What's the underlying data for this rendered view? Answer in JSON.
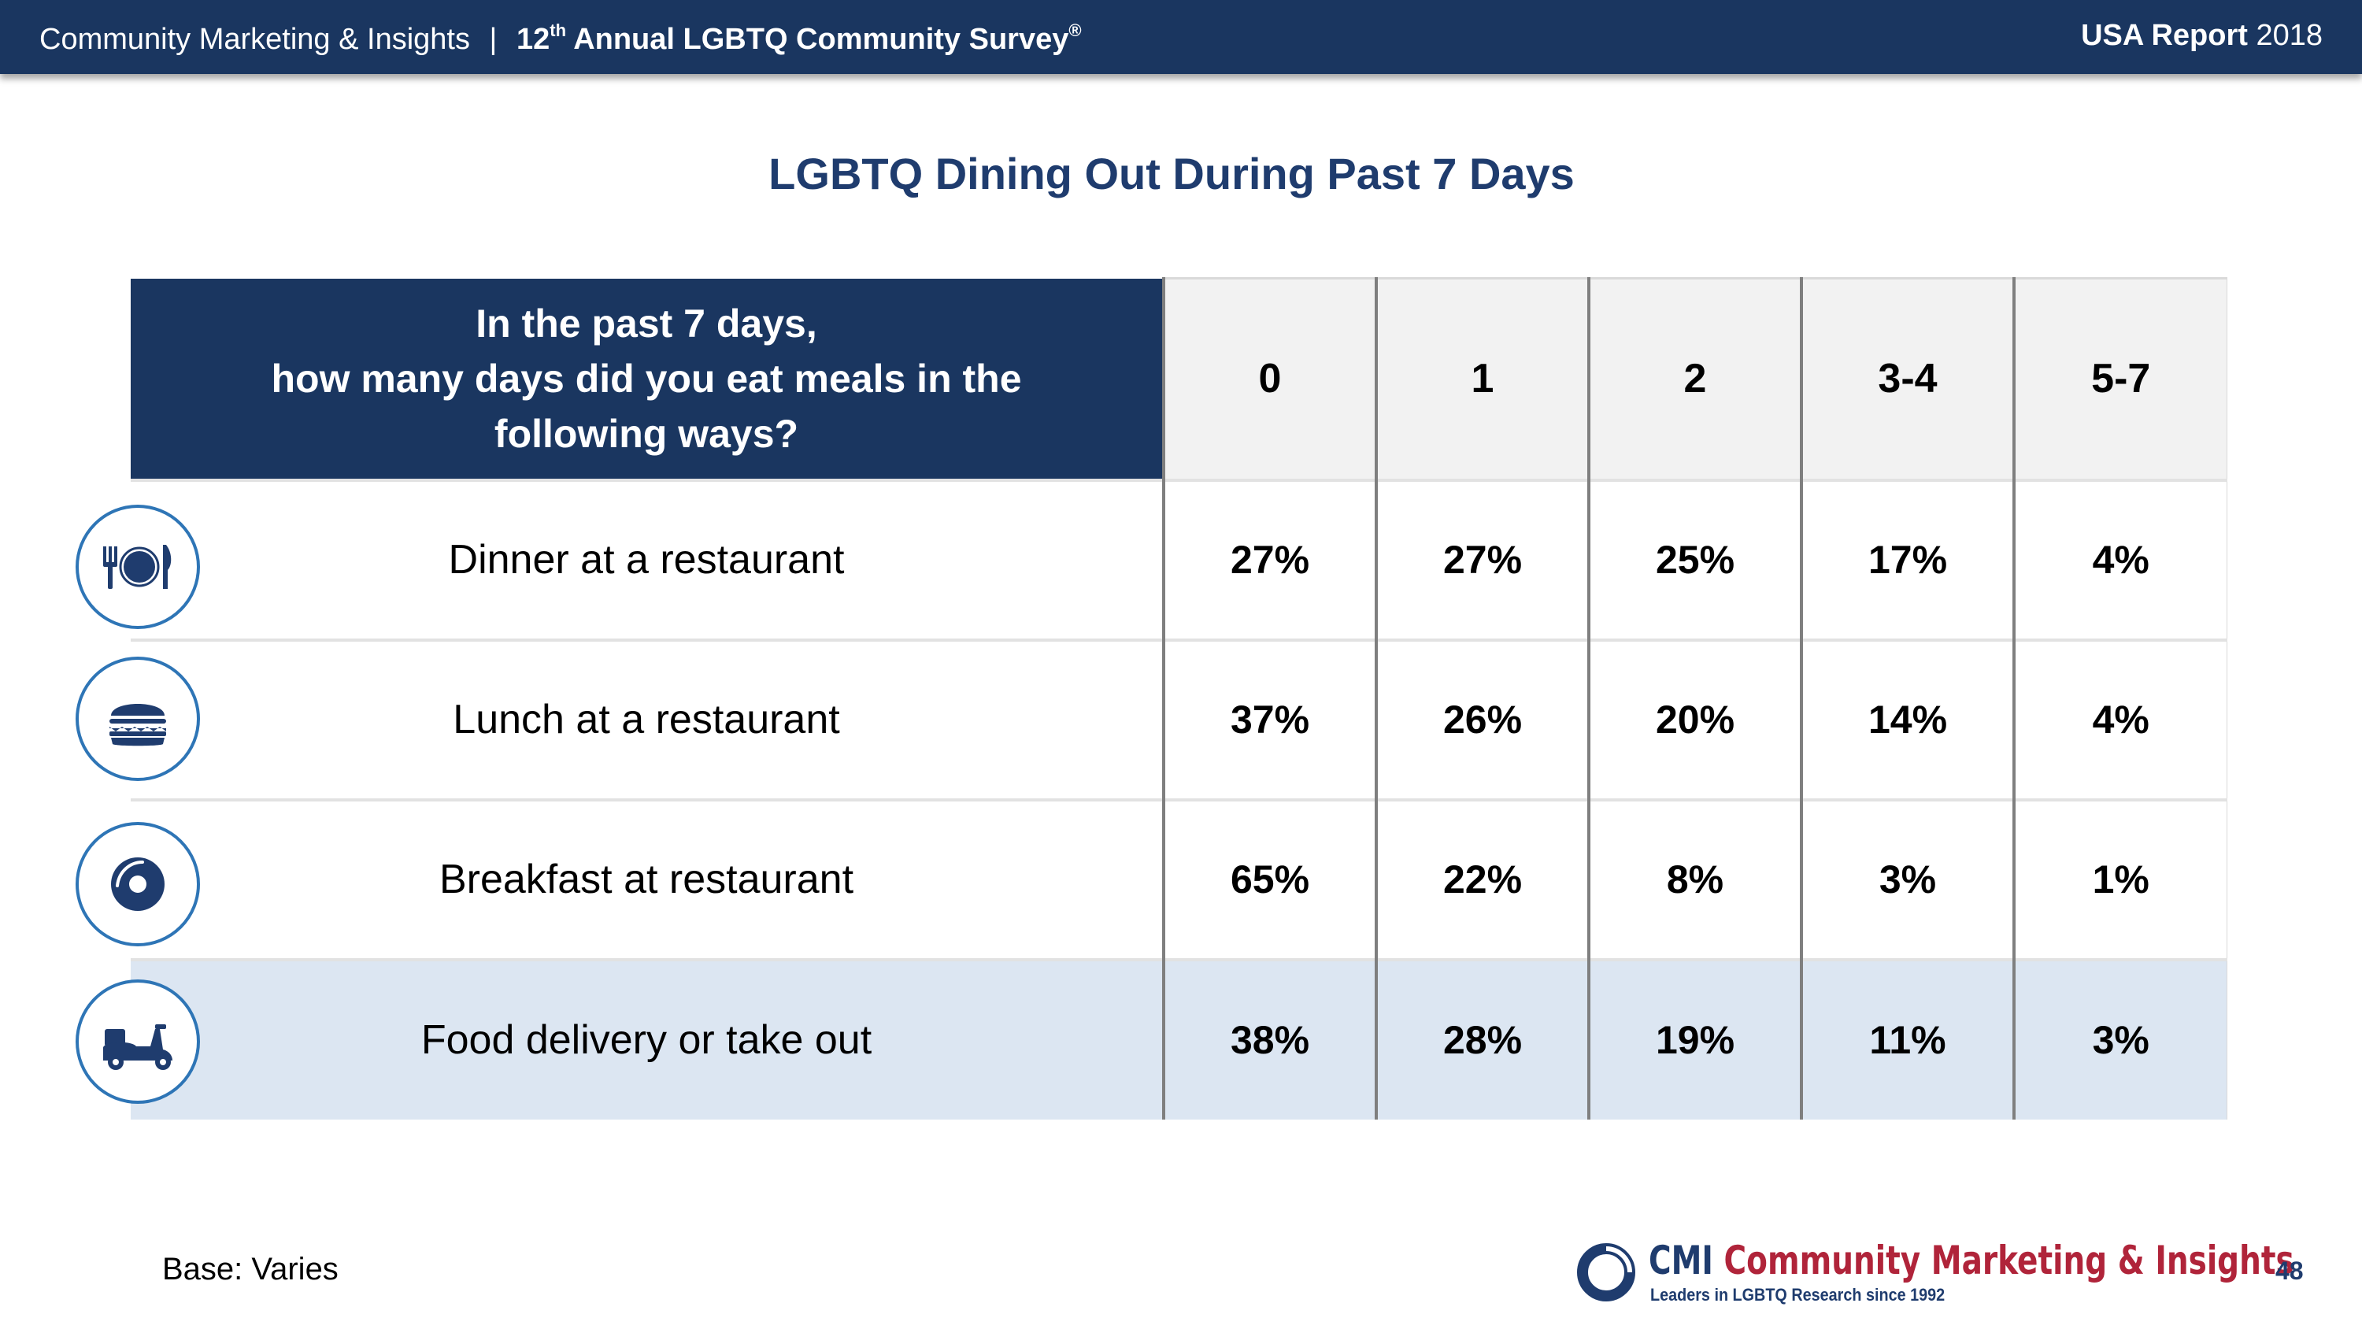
{
  "header": {
    "org": "Community Marketing & Insights",
    "separator": "|",
    "survey_prefix": "12",
    "survey_sup": "th",
    "survey_name": "Annual LGBTQ Community Survey",
    "survey_mark": "®",
    "report_label": "USA Report",
    "report_year": "2018"
  },
  "title": "LGBTQ Dining Out During Past 7 Days",
  "table": {
    "question_lines": [
      "In the past 7 days,",
      "how many days did you eat meals in the",
      "following ways?"
    ],
    "columns": [
      "0",
      "1",
      "2",
      "3-4",
      "5-7"
    ],
    "rows": [
      {
        "label": "Dinner at a restaurant",
        "icon": "dinner-plate-icon",
        "values": [
          "27%",
          "27%",
          "25%",
          "17%",
          "4%"
        ]
      },
      {
        "label": "Lunch at a restaurant",
        "icon": "burger-icon",
        "values": [
          "37%",
          "26%",
          "20%",
          "14%",
          "4%"
        ]
      },
      {
        "label": "Breakfast at restaurant",
        "icon": "donut-icon",
        "values": [
          "65%",
          "22%",
          "8%",
          "3%",
          "1%"
        ]
      },
      {
        "label": "Food delivery or take out",
        "icon": "scooter-icon",
        "values": [
          "38%",
          "28%",
          "19%",
          "11%",
          "3%"
        ]
      }
    ]
  },
  "footer": {
    "base": "Base: Varies",
    "logo_abbr": "CMI",
    "logo_name": "Community Marketing & Insights",
    "logo_tagline": "Leaders in LGBTQ Research since 1992",
    "page_number": "48"
  },
  "colors": {
    "navy": "#1a3660",
    "title_blue": "#1f3c6e",
    "icon_blue": "#2e75b6",
    "highlight_row": "#dce6f2",
    "logo_red": "#b0243a"
  }
}
